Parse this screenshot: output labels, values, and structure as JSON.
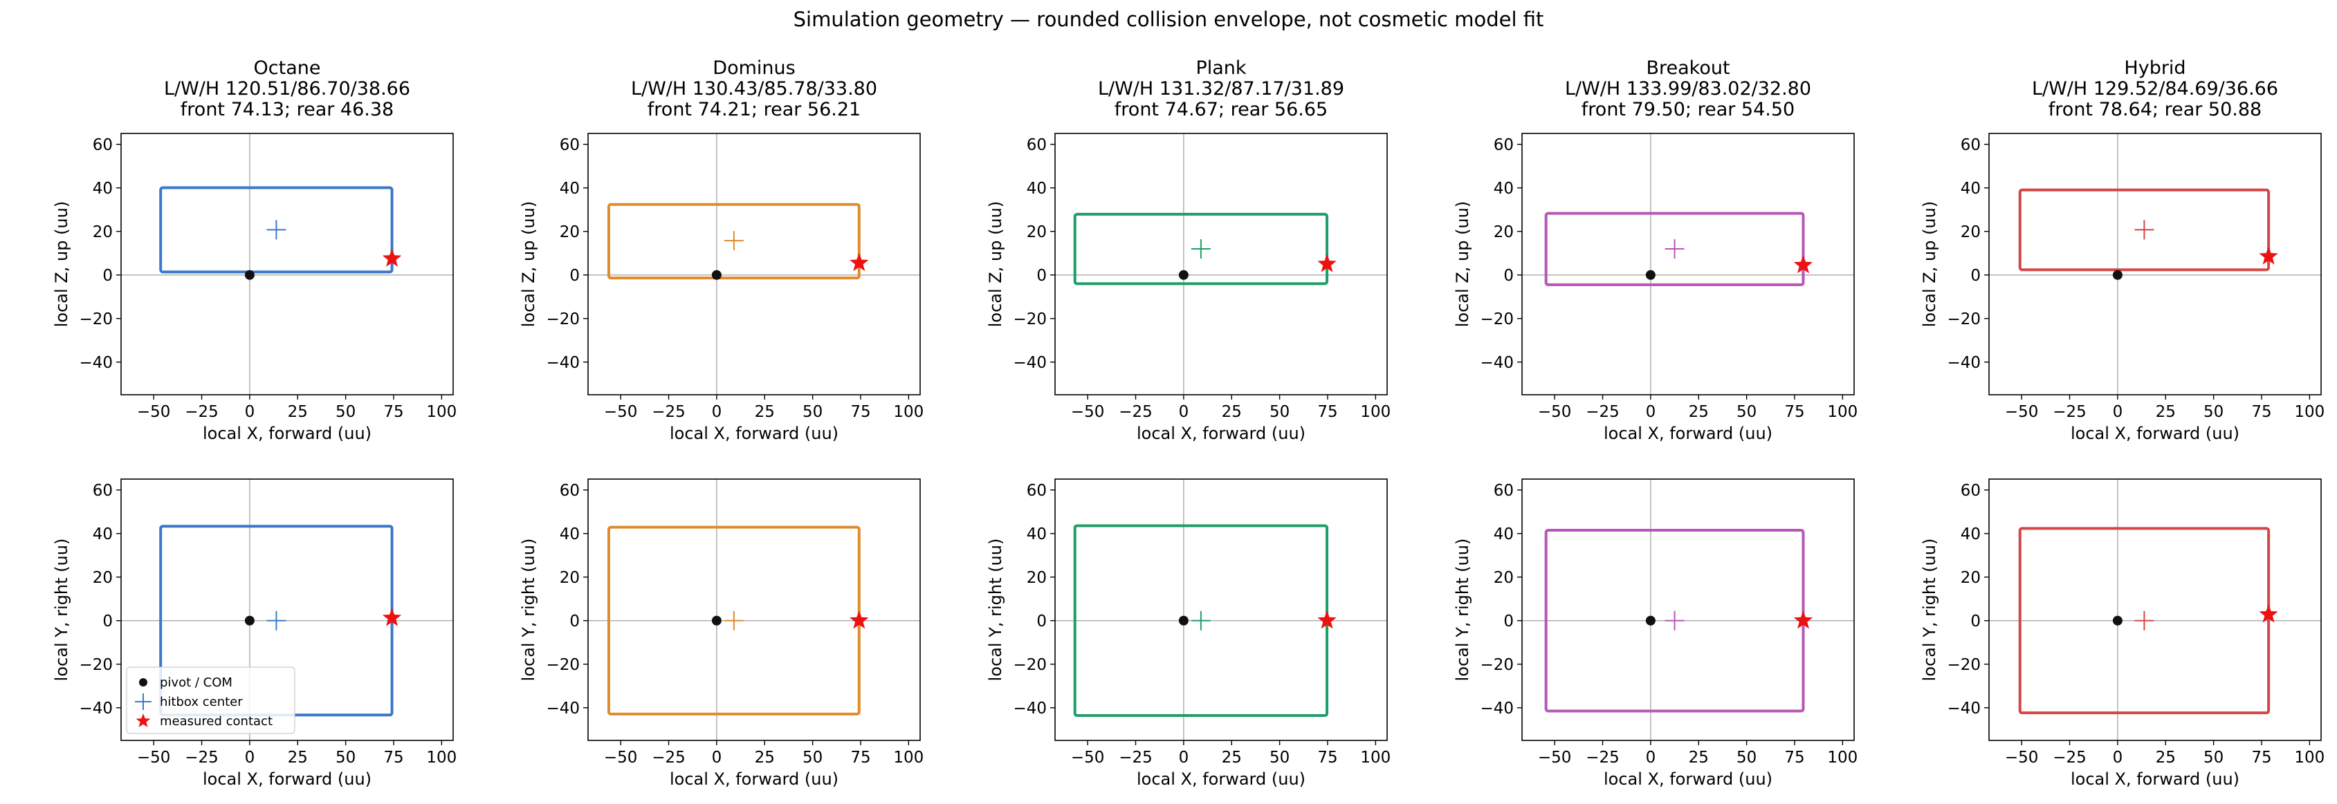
{
  "figure": {
    "suptitle": "Simulation geometry — rounded collision envelope, not cosmetic model fit"
  },
  "legend": {
    "pivot": "pivot / COM",
    "hitbox": "hitbox center",
    "contact": "measured contact"
  },
  "axes": {
    "x_label": "local X, forward (uu)",
    "top_y_label": "local Z, up (uu)",
    "bottom_y_label": "local Y, right (uu)",
    "xlim": [
      -67,
      106
    ],
    "ylim": [
      -55,
      65
    ],
    "x_ticks": [
      -50,
      -25,
      0,
      25,
      50,
      75,
      100
    ],
    "y_ticks": [
      -40,
      -20,
      0,
      20,
      40,
      60
    ],
    "grid": false,
    "zero_lines": true
  },
  "chart_data": [
    {
      "type": "scatter",
      "car": "Octane",
      "title_lines": [
        "Octane",
        "L/W/H 120.51/86.70/38.66",
        "front 74.13; rear 46.38"
      ],
      "color": "#3a78c9",
      "side_view": {
        "x_range": [
          -46.38,
          74.13
        ],
        "z_range": [
          1.4,
          40.06
        ],
        "hitbox_center": [
          13.88,
          20.75
        ],
        "pivot": [
          0,
          0
        ],
        "contact": [
          74.13,
          7.5
        ]
      },
      "top_view": {
        "x_range": [
          -46.38,
          74.13
        ],
        "y_range": [
          -43.35,
          43.35
        ],
        "hitbox_center": [
          13.88,
          0
        ],
        "pivot": [
          0,
          0
        ],
        "contact": [
          74.13,
          1.2
        ]
      }
    },
    {
      "type": "scatter",
      "car": "Dominus",
      "title_lines": [
        "Dominus",
        "L/W/H 130.43/85.78/33.80",
        "front 74.21; rear 56.21"
      ],
      "color": "#e08a2c",
      "side_view": {
        "x_range": [
          -56.21,
          74.21
        ],
        "z_range": [
          -1.4,
          32.4
        ],
        "hitbox_center": [
          9.0,
          15.75
        ],
        "pivot": [
          0,
          0
        ],
        "contact": [
          74.21,
          5.5
        ]
      },
      "top_view": {
        "x_range": [
          -56.21,
          74.21
        ],
        "y_range": [
          -42.89,
          42.89
        ],
        "hitbox_center": [
          9.0,
          0
        ],
        "pivot": [
          0,
          0
        ],
        "contact": [
          74.21,
          0
        ]
      }
    },
    {
      "type": "scatter",
      "car": "Plank",
      "title_lines": [
        "Plank",
        "L/W/H 131.32/87.17/31.89",
        "front 74.67; rear 56.65"
      ],
      "color": "#1e9e68",
      "side_view": {
        "x_range": [
          -56.65,
          74.67
        ],
        "z_range": [
          -4.0,
          27.89
        ],
        "hitbox_center": [
          9.01,
          12.0
        ],
        "pivot": [
          0,
          0
        ],
        "contact": [
          74.67,
          5.0
        ]
      },
      "top_view": {
        "x_range": [
          -56.65,
          74.67
        ],
        "y_range": [
          -43.59,
          43.59
        ],
        "hitbox_center": [
          9.01,
          0
        ],
        "pivot": [
          0,
          0
        ],
        "contact": [
          74.67,
          0
        ]
      }
    },
    {
      "type": "scatter",
      "car": "Breakout",
      "title_lines": [
        "Breakout",
        "L/W/H 133.99/83.02/32.80",
        "front 79.50; rear 54.50"
      ],
      "color": "#b855b8",
      "side_view": {
        "x_range": [
          -54.5,
          79.5
        ],
        "z_range": [
          -4.5,
          28.3
        ],
        "hitbox_center": [
          12.5,
          12.0
        ],
        "pivot": [
          0,
          0
        ],
        "contact": [
          79.5,
          4.5
        ]
      },
      "top_view": {
        "x_range": [
          -54.5,
          79.5
        ],
        "y_range": [
          -41.51,
          41.51
        ],
        "hitbox_center": [
          12.5,
          0
        ],
        "pivot": [
          0,
          0
        ],
        "contact": [
          79.5,
          0
        ]
      }
    },
    {
      "type": "scatter",
      "car": "Hybrid",
      "title_lines": [
        "Hybrid",
        "L/W/H 129.52/84.69/36.66",
        "front 78.64; rear 50.88"
      ],
      "color": "#d64545",
      "side_view": {
        "x_range": [
          -50.88,
          78.64
        ],
        "z_range": [
          2.4,
          39.06
        ],
        "hitbox_center": [
          13.88,
          20.75
        ],
        "pivot": [
          0,
          0
        ],
        "contact": [
          78.64,
          8.5
        ]
      },
      "top_view": {
        "x_range": [
          -50.88,
          78.64
        ],
        "y_range": [
          -42.35,
          42.35
        ],
        "hitbox_center": [
          13.88,
          0
        ],
        "pivot": [
          0,
          0
        ],
        "contact": [
          78.64,
          2.8
        ]
      }
    }
  ]
}
